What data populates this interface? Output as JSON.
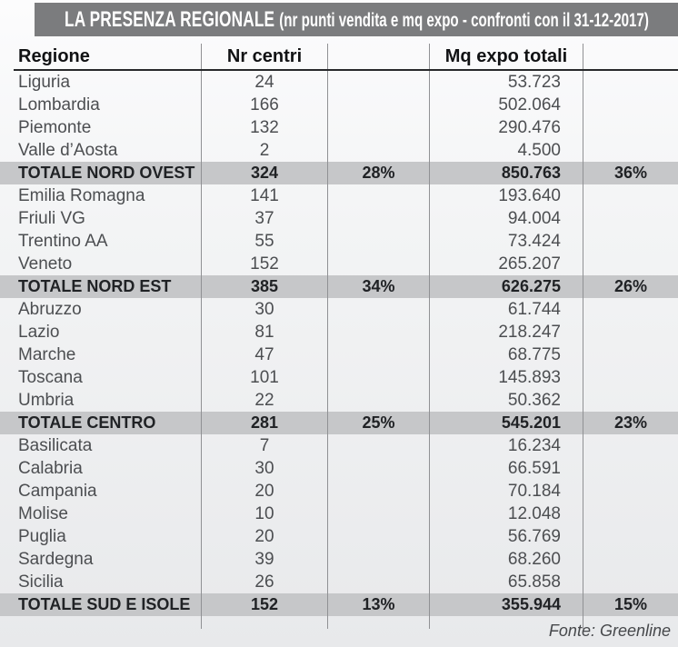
{
  "title": {
    "main": "LA PRESENZA REGIONALE",
    "subtitle": "(nr punti vendita e mq expo - confronti con il 31-12-2017)"
  },
  "table": {
    "header_region": "Regione",
    "header_centers": "Nr centri",
    "header_mq": "Mq expo totali"
  },
  "footer": {
    "source": "Fonte: Greenline"
  },
  "colors": {
    "title_bar": "#7b7c7e",
    "total_row_bg": "#c6c7c9",
    "divider": "#909194",
    "header_rule": "#28292b",
    "body_text": "#4c4e51",
    "total_text": "#202225"
  },
  "chart_data": {
    "type": "table",
    "title": "LA PRESENZA REGIONALE",
    "subtitle": "(nr punti vendita e mq expo - confronti con il 31-12-2017)",
    "columns": [
      "Regione",
      "Nr centri",
      "",
      "Mq expo totali",
      ""
    ],
    "sections": [
      {
        "rows": [
          {
            "region": "Liguria",
            "centers": "24",
            "mq": "53.723"
          },
          {
            "region": "Lombardia",
            "centers": "166",
            "mq": "502.064"
          },
          {
            "region": "Piemonte",
            "centers": "132",
            "mq": "290.476"
          },
          {
            "region": "Valle d’Aosta",
            "centers": "2",
            "mq": "4.500"
          }
        ],
        "total": {
          "label": "TOTALE NORD OVEST",
          "centers": "324",
          "centers_pct": "28%",
          "mq": "850.763",
          "mq_pct": "36%"
        }
      },
      {
        "rows": [
          {
            "region": "Emilia Romagna",
            "centers": "141",
            "mq": "193.640"
          },
          {
            "region": "Friuli VG",
            "centers": "37",
            "mq": "94.004"
          },
          {
            "region": "Trentino AA",
            "centers": "55",
            "mq": "73.424"
          },
          {
            "region": "Veneto",
            "centers": "152",
            "mq": "265.207"
          }
        ],
        "total": {
          "label": "TOTALE NORD EST",
          "centers": "385",
          "centers_pct": "34%",
          "mq": "626.275",
          "mq_pct": "26%"
        }
      },
      {
        "rows": [
          {
            "region": "Abruzzo",
            "centers": "30",
            "mq": "61.744"
          },
          {
            "region": "Lazio",
            "centers": "81",
            "mq": "218.247"
          },
          {
            "region": "Marche",
            "centers": "47",
            "mq": "68.775"
          },
          {
            "region": "Toscana",
            "centers": "101",
            "mq": "145.893"
          },
          {
            "region": "Umbria",
            "centers": "22",
            "mq": "50.362"
          }
        ],
        "total": {
          "label": "TOTALE CENTRO",
          "centers": "281",
          "centers_pct": "25%",
          "mq": "545.201",
          "mq_pct": "23%"
        }
      },
      {
        "rows": [
          {
            "region": "Basilicata",
            "centers": "7",
            "mq": "16.234"
          },
          {
            "region": "Calabria",
            "centers": "30",
            "mq": "66.591"
          },
          {
            "region": "Campania",
            "centers": "20",
            "mq": "70.184"
          },
          {
            "region": "Molise",
            "centers": "10",
            "mq": "12.048"
          },
          {
            "region": "Puglia",
            "centers": "20",
            "mq": "56.769"
          },
          {
            "region": "Sardegna",
            "centers": "39",
            "mq": "68.260"
          },
          {
            "region": "Sicilia",
            "centers": "26",
            "mq": "65.858"
          }
        ],
        "total": {
          "label": "TOTALE SUD E ISOLE",
          "centers": "152",
          "centers_pct": "13%",
          "mq": "355.944",
          "mq_pct": "15%"
        }
      }
    ],
    "source": "Fonte: Greenline"
  }
}
